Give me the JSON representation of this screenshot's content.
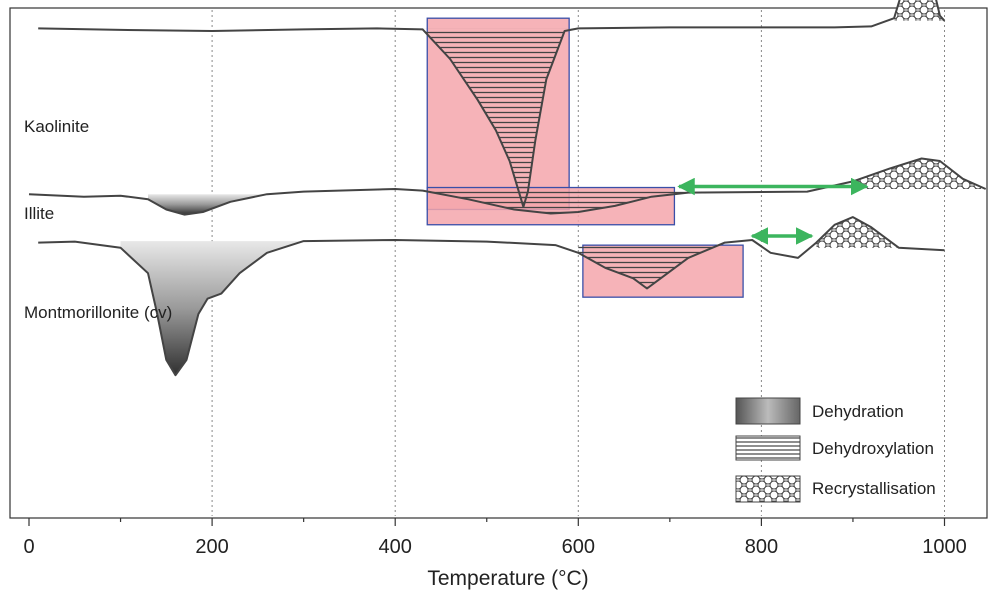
{
  "chart_data": {
    "type": "line",
    "title": "",
    "xlabel": "Temperature (°C)",
    "ylabel": "",
    "xlim": [
      0,
      1050
    ],
    "x_ticks": [
      0,
      200,
      400,
      600,
      800,
      1000
    ],
    "x_tick_labels": [
      "0",
      "200",
      "400",
      "600",
      "800",
      "1000"
    ],
    "grid_x": [
      200,
      400,
      600,
      800,
      1000
    ],
    "grid": "vertical dotted",
    "legend_position": "bottom-right",
    "series": [
      {
        "name": "Kaolinite",
        "color": "#444444",
        "points": [
          [
            10,
            0.96
          ],
          [
            100,
            0.957
          ],
          [
            200,
            0.955
          ],
          [
            300,
            0.958
          ],
          [
            380,
            0.96
          ],
          [
            430,
            0.958
          ],
          [
            460,
            0.9
          ],
          [
            490,
            0.82
          ],
          [
            510,
            0.76
          ],
          [
            525,
            0.7
          ],
          [
            535,
            0.64
          ],
          [
            540,
            0.61
          ],
          [
            545,
            0.64
          ],
          [
            553,
            0.74
          ],
          [
            565,
            0.86
          ],
          [
            585,
            0.955
          ],
          [
            600,
            0.96
          ],
          [
            700,
            0.962
          ],
          [
            800,
            0.962
          ],
          [
            880,
            0.962
          ],
          [
            920,
            0.964
          ],
          [
            945,
            0.98
          ],
          [
            955,
            1.04
          ],
          [
            965,
            1.13
          ],
          [
            972,
            1.18
          ],
          [
            978,
            1.16
          ],
          [
            985,
            1.06
          ],
          [
            995,
            0.985
          ],
          [
            1000,
            0.975
          ]
        ]
      },
      {
        "name": "Illite",
        "color": "#444444",
        "points": [
          [
            0,
            0.635
          ],
          [
            60,
            0.63
          ],
          [
            100,
            0.632
          ],
          [
            130,
            0.625
          ],
          [
            150,
            0.605
          ],
          [
            170,
            0.595
          ],
          [
            190,
            0.6
          ],
          [
            220,
            0.62
          ],
          [
            260,
            0.635
          ],
          [
            300,
            0.64
          ],
          [
            400,
            0.645
          ],
          [
            430,
            0.642
          ],
          [
            480,
            0.625
          ],
          [
            530,
            0.605
          ],
          [
            570,
            0.597
          ],
          [
            600,
            0.6
          ],
          [
            640,
            0.612
          ],
          [
            680,
            0.63
          ],
          [
            720,
            0.638
          ],
          [
            850,
            0.64
          ],
          [
            900,
            0.66
          ],
          [
            940,
            0.685
          ],
          [
            975,
            0.705
          ],
          [
            995,
            0.7
          ],
          [
            1020,
            0.665
          ],
          [
            1045,
            0.645
          ]
        ]
      },
      {
        "name": "Montmorillonite (cv)",
        "color": "#444444",
        "points": [
          [
            10,
            0.54
          ],
          [
            50,
            0.542
          ],
          [
            100,
            0.53
          ],
          [
            130,
            0.48
          ],
          [
            140,
            0.4
          ],
          [
            150,
            0.31
          ],
          [
            160,
            0.28
          ],
          [
            172,
            0.31
          ],
          [
            185,
            0.4
          ],
          [
            195,
            0.43
          ],
          [
            210,
            0.44
          ],
          [
            230,
            0.48
          ],
          [
            260,
            0.52
          ],
          [
            300,
            0.543
          ],
          [
            400,
            0.545
          ],
          [
            500,
            0.542
          ],
          [
            575,
            0.535
          ],
          [
            600,
            0.52
          ],
          [
            630,
            0.49
          ],
          [
            660,
            0.47
          ],
          [
            675,
            0.45
          ],
          [
            690,
            0.47
          ],
          [
            720,
            0.51
          ],
          [
            760,
            0.54
          ],
          [
            790,
            0.545
          ],
          [
            810,
            0.52
          ],
          [
            840,
            0.51
          ],
          [
            860,
            0.54
          ],
          [
            880,
            0.575
          ],
          [
            900,
            0.59
          ],
          [
            920,
            0.57
          ],
          [
            950,
            0.53
          ],
          [
            1000,
            0.525
          ]
        ]
      }
    ],
    "legend": [
      {
        "label": "Dehydration",
        "pattern": "gradient"
      },
      {
        "label": "Dehydroxylation",
        "pattern": "horizontal-lines"
      },
      {
        "label": "Recrystallisation",
        "pattern": "hexagons"
      }
    ],
    "highlight_boxes": [
      {
        "x_range": [
          435,
          590
        ],
        "y_range": [
          0.605,
          0.98
        ],
        "color": "#f4a6ab"
      },
      {
        "x_range": [
          435,
          705
        ],
        "y_range": [
          0.575,
          0.648
        ],
        "color": "#f4a6ab"
      },
      {
        "x_range": [
          605,
          780
        ],
        "y_range": [
          0.433,
          0.535
        ],
        "color": "#f4a6ab"
      }
    ],
    "arrows": [
      {
        "x_range": [
          710,
          915
        ],
        "y": 0.65,
        "color": "#3cb55e",
        "direction": "both"
      },
      {
        "x_range": [
          790,
          855
        ],
        "y": 0.553,
        "color": "#3cb55e",
        "direction": "both"
      }
    ]
  },
  "colors": {
    "box_fill": "#f4a6ab",
    "box_border": "#3a4fa8",
    "arrow": "#3cb55e",
    "curve": "#444444",
    "grid": "#888888"
  }
}
